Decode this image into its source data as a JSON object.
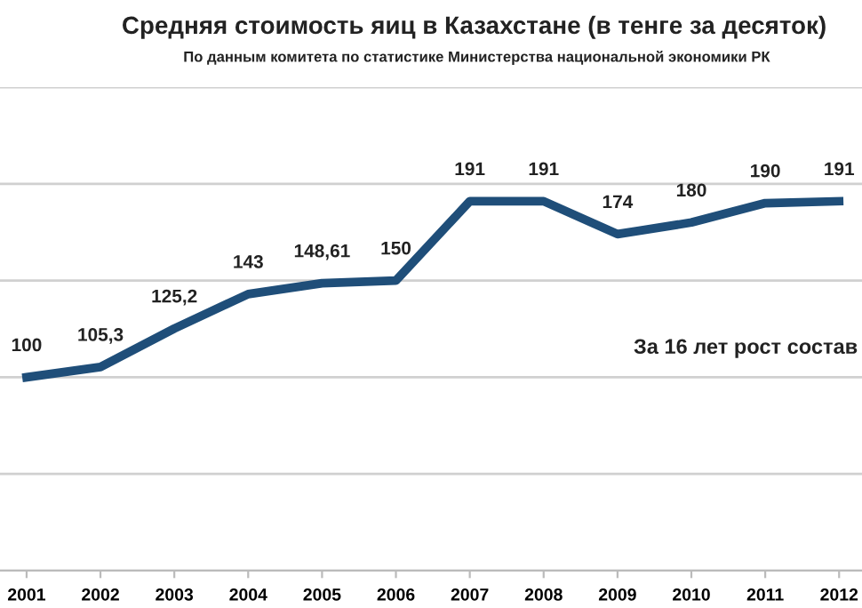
{
  "chart_data": {
    "type": "line",
    "title": "Средняя стоимость яиц в Казахстане (в тенге за десяток)",
    "subtitle": "По данным комитета по статистике Министерства национальной экономики РК",
    "x": [
      2001,
      2002,
      2003,
      2004,
      2005,
      2006,
      2007,
      2008,
      2009,
      2010,
      2011,
      2012
    ],
    "series": [
      {
        "color": "#1f4e79",
        "values": [
          100,
          105.3,
          125.2,
          143,
          148.61,
          150,
          191,
          191,
          174,
          180,
          190,
          191
        ],
        "value_labels": [
          "100",
          "105,3",
          "125,2",
          "143",
          "148,61",
          "150",
          "191",
          "191",
          "174",
          "180",
          "190",
          "191"
        ]
      }
    ],
    "xlim": [
      2000.64,
      2012.31
    ],
    "xticks": [
      2001,
      2002,
      2003,
      2004,
      2005,
      2006,
      2007,
      2008,
      2009,
      2010,
      2011,
      2012
    ],
    "ylim": [
      0,
      250
    ],
    "yticks": [
      {
        "value": 0,
        "label": null
      },
      {
        "value": 50,
        "label": null
      },
      {
        "value": 100,
        "label": null
      },
      {
        "value": 150,
        "label": null
      },
      {
        "value": 200,
        "label": null
      },
      {
        "value": 250,
        "label": null
      }
    ],
    "tick_labels": "x",
    "grid": "y",
    "marker": "none",
    "line_style": "solid",
    "legend": false,
    "annotations": [
      "За 16 лет рост состав"
    ]
  }
}
